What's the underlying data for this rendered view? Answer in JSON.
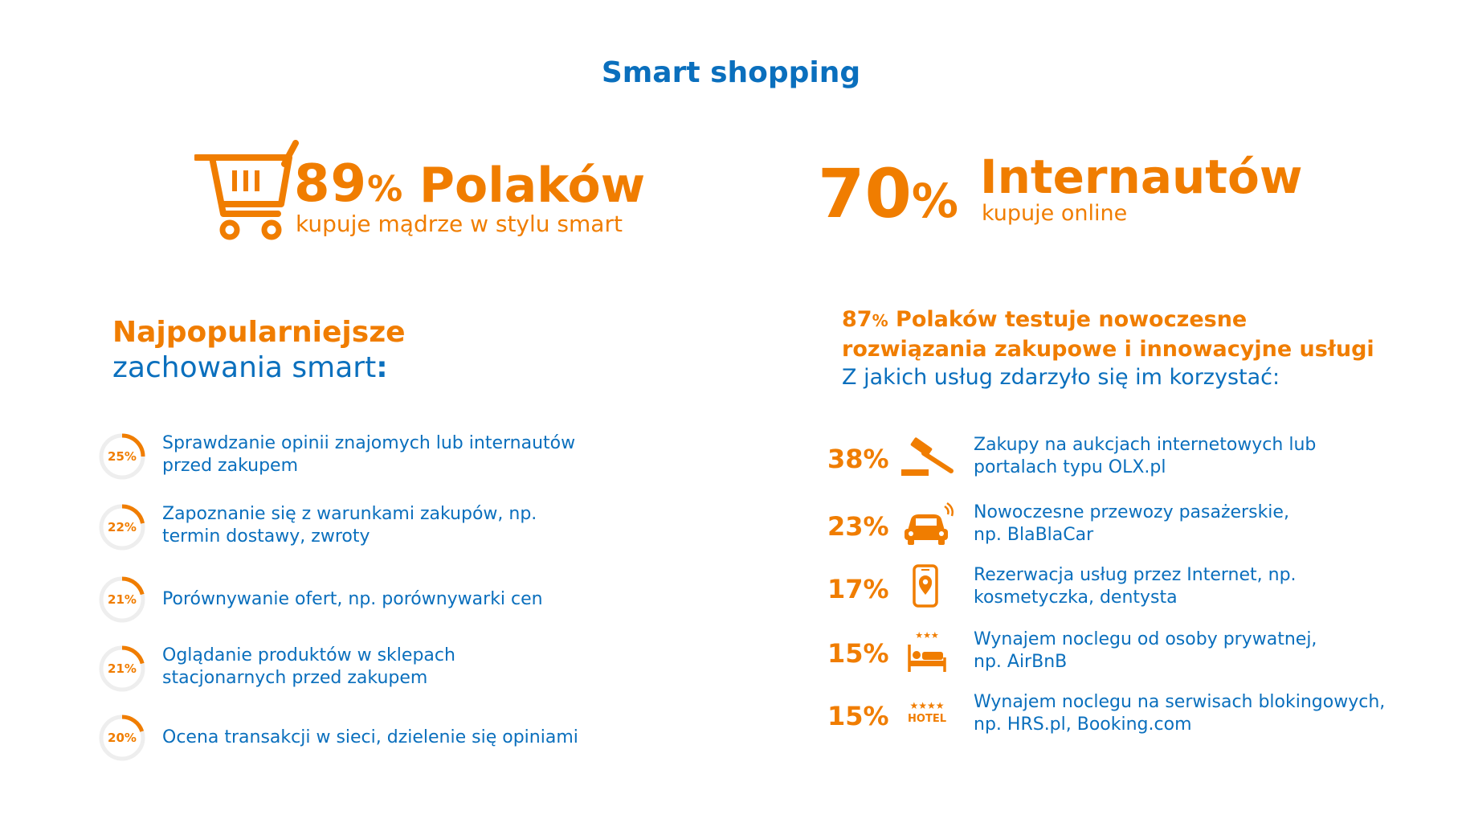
{
  "title": "Smart shopping",
  "stat_left": {
    "percent": "89",
    "percent_sign": "%",
    "word": "Polaków",
    "subtitle": "kupuje mądrze w stylu smart",
    "icon": "shopping-cart-icon"
  },
  "stat_right": {
    "percent": "70",
    "percent_sign": "%",
    "word": "Internautów",
    "subtitle": "kupuje online"
  },
  "left_heading": {
    "line1": "Najpopularniejsze",
    "line2": "zachowania smart",
    "colon": ":"
  },
  "right_heading": {
    "pct": "87",
    "pct_sign": "%",
    "line1_rest": " Polaków testuje nowoczesne",
    "line2": "rozwiązania zakupowe i innowacyjne usługi",
    "line3": "Z jakich usług zdarzyło się im korzystać:"
  },
  "behaviours": [
    {
      "label": "25%",
      "value": 25,
      "line1": "Sprawdzanie opinii znajomych lub internautów",
      "line2": "przed zakupem"
    },
    {
      "label": "22%",
      "value": 22,
      "line1": "Zapoznanie się z warunkami zakupów, np.",
      "line2": "termin dostawy, zwroty"
    },
    {
      "label": "21%",
      "value": 21,
      "line1": "Porównywanie ofert, np. porównywarki cen",
      "line2": ""
    },
    {
      "label": "21%",
      "value": 21,
      "line1": "Oglądanie produktów w sklepach",
      "line2": "stacjonarnych przed zakupem"
    },
    {
      "label": "20%",
      "value": 20,
      "line1": "Ocena transakcji w sieci, dzielenie się opiniami",
      "line2": ""
    }
  ],
  "services": [
    {
      "pct": "38%",
      "icon": "auction-gavel-icon",
      "line1": "Zakupy na aukcjach internetowych lub",
      "line2": "portalach typu OLX.pl"
    },
    {
      "pct": "23%",
      "icon": "connected-car-icon",
      "line1": "Nowoczesne przewozy pasażerskie,",
      "line2": "np. BlaBlaCar"
    },
    {
      "pct": "17%",
      "icon": "smartphone-location-icon",
      "line1": "Rezerwacja usług przez Internet, np.",
      "line2": "kosmetyczka, dentysta"
    },
    {
      "pct": "15%",
      "icon": "bed-three-stars-icon",
      "icon_text": "★★★",
      "line1": "Wynajem noclegu od osoby prywatnej,",
      "line2": "np. AirBnB"
    },
    {
      "pct": "15%",
      "icon": "hotel-four-stars-icon",
      "icon_text": "★★★★",
      "icon_label": "HOTEL",
      "line1": "Wynajem noclegu na serwisach blokingowych,",
      "line2": "np. HRS.pl, Booking.com"
    }
  ],
  "colors": {
    "orange": "#f07d00",
    "blue": "#0a6fbd",
    "ring_track": "#eeeeee"
  }
}
